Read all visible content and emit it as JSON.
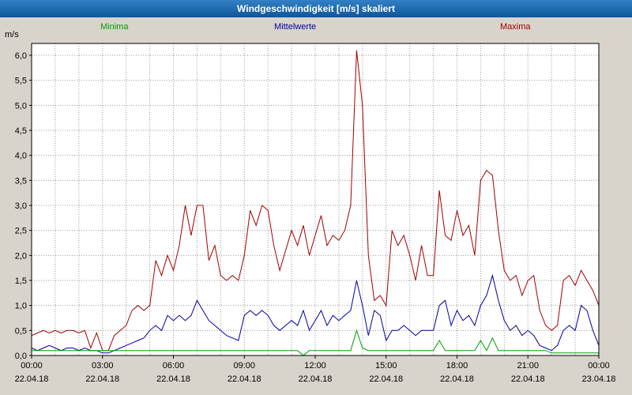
{
  "window": {
    "title": "Windgeschwindigkeit [m/s] skaliert"
  },
  "axis": {
    "unit_label": "m/s"
  },
  "chart_data": {
    "type": "line",
    "title": "Windgeschwindigkeit [m/s] skaliert",
    "ylabel": "m/s",
    "ylim": [
      0,
      6.2
    ],
    "y_tick_step": 0.5,
    "y_tick_labels": [
      "6,0",
      "5,5",
      "5,0",
      "4,5",
      "4,0",
      "3,5",
      "3,0",
      "2,5",
      "2,0",
      "1,5",
      "1,0",
      "0,5",
      "0,0"
    ],
    "x_range_hours": [
      0,
      24
    ],
    "x_step_hours": 0.25,
    "x_ticks": [
      {
        "time": "00:00",
        "date": "22.04.18"
      },
      {
        "time": "03:00",
        "date": "22.04.18"
      },
      {
        "time": "06:00",
        "date": "22.04.18"
      },
      {
        "time": "09:00",
        "date": "22.04.18"
      },
      {
        "time": "12:00",
        "date": "22.04.18"
      },
      {
        "time": "15:00",
        "date": "22.04.18"
      },
      {
        "time": "18:00",
        "date": "22.04.18"
      },
      {
        "time": "21:00",
        "date": "22.04.18"
      },
      {
        "time": "00:00",
        "date": "23.04.18"
      }
    ],
    "grid": "dotted; vertical every hour, horizontal every 0.5 m/s",
    "legend_position": "top",
    "colors": {
      "background_page": "#d8d4cc",
      "background_plot": "#ffffff",
      "titlebar": "#1565ab",
      "grid": "#9a9a9a",
      "axis": "#000000"
    },
    "series": [
      {
        "name": "Minima",
        "color": "#00a000",
        "values": [
          0.1,
          0.1,
          0.1,
          0.1,
          0.1,
          0.1,
          0.1,
          0.1,
          0.1,
          0.1,
          0.1,
          0.1,
          0.1,
          0.1,
          0.1,
          0.1,
          0.1,
          0.1,
          0.1,
          0.1,
          0.1,
          0.1,
          0.1,
          0.1,
          0.1,
          0.1,
          0.1,
          0.1,
          0.1,
          0.1,
          0.1,
          0.1,
          0.1,
          0.1,
          0.1,
          0.1,
          0.1,
          0.1,
          0.1,
          0.1,
          0.1,
          0.1,
          0.1,
          0.1,
          0.1,
          0.1,
          0.0,
          0.1,
          0.1,
          0.1,
          0.1,
          0.1,
          0.1,
          0.1,
          0.1,
          0.5,
          0.15,
          0.1,
          0.1,
          0.1,
          0.1,
          0.1,
          0.1,
          0.1,
          0.1,
          0.1,
          0.1,
          0.1,
          0.1,
          0.3,
          0.1,
          0.1,
          0.1,
          0.1,
          0.1,
          0.1,
          0.3,
          0.1,
          0.35,
          0.1,
          0.1,
          0.1,
          0.1,
          0.1,
          0.1,
          0.1,
          0.1,
          0.1,
          0.05,
          0.05,
          0.05,
          0.05,
          0.05,
          0.05,
          0.05,
          0.05,
          0.05
        ]
      },
      {
        "name": "Mittelwerte",
        "color": "#0000a0",
        "values": [
          0.15,
          0.1,
          0.15,
          0.2,
          0.15,
          0.1,
          0.15,
          0.15,
          0.1,
          0.15,
          0.1,
          0.1,
          0.05,
          0.05,
          0.1,
          0.15,
          0.2,
          0.25,
          0.3,
          0.35,
          0.5,
          0.6,
          0.5,
          0.8,
          0.7,
          0.8,
          0.7,
          0.8,
          1.1,
          0.9,
          0.7,
          0.6,
          0.5,
          0.4,
          0.35,
          0.3,
          0.8,
          0.9,
          0.8,
          0.9,
          0.8,
          0.6,
          0.5,
          0.6,
          0.7,
          0.6,
          0.9,
          0.5,
          0.7,
          0.9,
          0.6,
          0.8,
          0.7,
          0.8,
          0.9,
          1.5,
          1.0,
          0.4,
          0.9,
          0.8,
          0.3,
          0.5,
          0.5,
          0.6,
          0.5,
          0.4,
          0.5,
          0.5,
          0.5,
          1.0,
          1.1,
          0.6,
          0.9,
          0.7,
          0.8,
          0.6,
          1.0,
          1.2,
          1.6,
          1.1,
          0.7,
          0.5,
          0.6,
          0.4,
          0.5,
          0.4,
          0.2,
          0.15,
          0.1,
          0.2,
          0.5,
          0.6,
          0.5,
          1.0,
          0.9,
          0.5,
          0.2
        ]
      },
      {
        "name": "Maxima",
        "color": "#a00000",
        "values": [
          0.4,
          0.45,
          0.5,
          0.45,
          0.5,
          0.45,
          0.5,
          0.5,
          0.45,
          0.5,
          0.15,
          0.45,
          0.1,
          0.1,
          0.4,
          0.5,
          0.6,
          0.9,
          1.0,
          0.9,
          1.0,
          1.9,
          1.6,
          2.0,
          1.7,
          2.2,
          3.0,
          2.4,
          3.0,
          3.0,
          1.9,
          2.2,
          1.6,
          1.5,
          1.6,
          1.5,
          2.0,
          2.9,
          2.6,
          3.0,
          2.9,
          2.2,
          1.7,
          2.1,
          2.5,
          2.2,
          2.6,
          2.0,
          2.4,
          2.8,
          2.2,
          2.4,
          2.3,
          2.5,
          3.0,
          6.1,
          5.0,
          2.0,
          1.1,
          1.2,
          1.0,
          2.5,
          2.2,
          2.4,
          2.0,
          1.5,
          2.2,
          1.6,
          1.6,
          3.3,
          2.4,
          2.3,
          2.9,
          2.4,
          2.6,
          2.0,
          3.5,
          3.7,
          3.6,
          2.5,
          1.7,
          1.5,
          1.6,
          1.2,
          1.5,
          1.6,
          0.9,
          0.6,
          0.5,
          0.6,
          1.5,
          1.6,
          1.4,
          1.7,
          1.5,
          1.3,
          1.0
        ]
      }
    ]
  }
}
